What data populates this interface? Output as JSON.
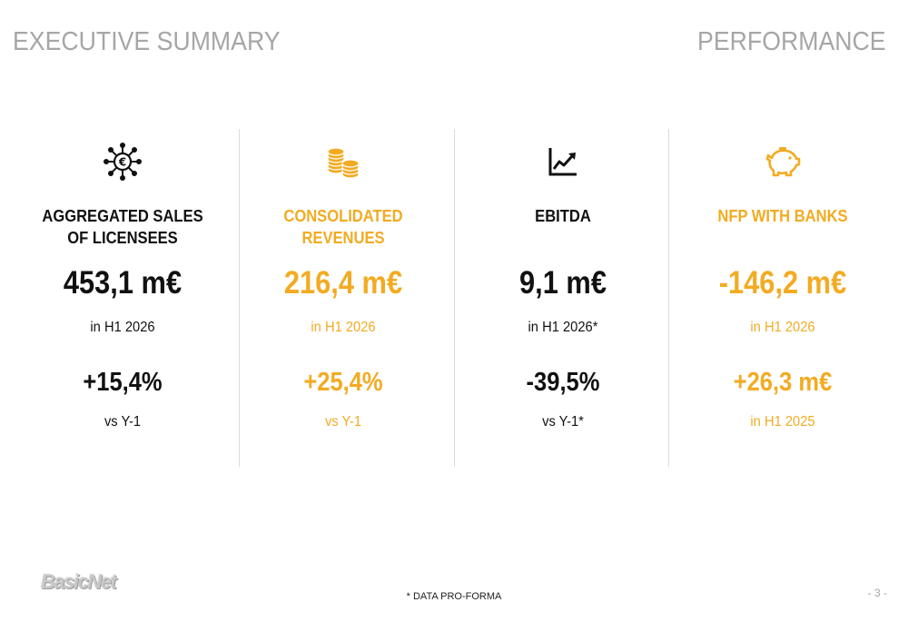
{
  "header": {
    "left_title": "EXECUTIVE SUMMARY",
    "right_title": "PERFORMANCE"
  },
  "colors": {
    "accent": "#f2ab22",
    "dark": "#111111",
    "header_gray": "#a6a6a6"
  },
  "kpis": [
    {
      "icon": "euro-network-icon",
      "title": "AGGREGATED SALES\nOF LICENSEES",
      "value": "453,1 m€",
      "period": "in H1 2026",
      "change": "+15,4%",
      "comparison": "vs Y-1",
      "color": "dark"
    },
    {
      "icon": "coins-icon",
      "title": "CONSOLIDATED\nREVENUES",
      "value": "216,4 m€",
      "period": "in H1 2026",
      "change": "+25,4%",
      "comparison": "vs Y-1",
      "color": "gold"
    },
    {
      "icon": "growth-chart-icon",
      "title": "EBITDA",
      "value": "9,1 m€",
      "period": "in H1 2026*",
      "change": "-39,5%",
      "comparison": "vs Y-1*",
      "color": "dark"
    },
    {
      "icon": "piggy-bank-icon",
      "title": "NFP WITH BANKS",
      "value": "-146,2 m€",
      "period": "in H1 2026",
      "change": "+26,3 m€",
      "comparison": "in H1 2025",
      "color": "gold"
    }
  ],
  "footer": {
    "logo_text": "BasicNet",
    "footnote": "* DATA PRO-FORMA",
    "page_number": "- 3 -"
  }
}
